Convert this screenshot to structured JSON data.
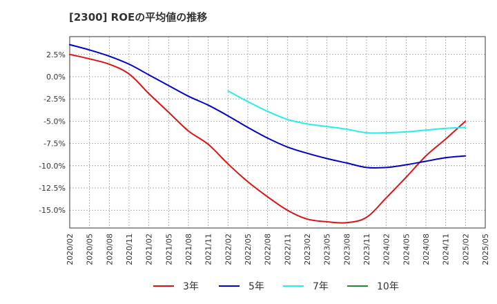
{
  "title": "[2300]  ROEの平均値の推移",
  "chart_data": {
    "type": "line",
    "title": "[2300]  ROEの平均値の推移",
    "xlabel": "",
    "ylabel": "",
    "x_ticks": [
      "2020/02",
      "2020/05",
      "2020/08",
      "2020/11",
      "2021/02",
      "2021/05",
      "2021/08",
      "2021/11",
      "2022/02",
      "2022/05",
      "2022/08",
      "2022/11",
      "2023/02",
      "2023/05",
      "2023/08",
      "2023/11",
      "2024/02",
      "2024/05",
      "2024/08",
      "2024/11",
      "2025/02",
      "2025/05"
    ],
    "y_ticks": [
      2.5,
      0.0,
      -2.5,
      -5.0,
      -7.5,
      -10.0,
      -12.5,
      -15.0
    ],
    "y_tick_labels": [
      "2.5%",
      "0.0%",
      "-2.5%",
      "-5.0%",
      "-7.5%",
      "-10.0%",
      "-12.5%",
      "-15.0%"
    ],
    "ylim": [
      -17.0,
      4.5
    ],
    "grid": true,
    "legend_position": "bottom",
    "series": [
      {
        "name": "3年",
        "color": "#dd1111",
        "x": [
          "2020/02",
          "2020/05",
          "2020/08",
          "2020/11",
          "2021/02",
          "2021/05",
          "2021/08",
          "2021/11",
          "2022/02",
          "2022/05",
          "2022/08",
          "2022/11",
          "2023/02",
          "2023/05",
          "2023/08",
          "2023/11",
          "2024/02",
          "2024/05",
          "2024/08",
          "2024/11",
          "2025/02"
        ],
        "values": [
          2.5,
          2.0,
          1.4,
          0.3,
          -1.9,
          -4.0,
          -6.1,
          -7.6,
          -9.8,
          -11.8,
          -13.5,
          -15.0,
          -16.0,
          -16.3,
          -16.4,
          -15.8,
          -13.6,
          -11.3,
          -8.9,
          -7.0,
          -5.0
        ]
      },
      {
        "name": "5年",
        "color": "#0000cc",
        "x": [
          "2020/02",
          "2020/05",
          "2020/08",
          "2020/11",
          "2021/02",
          "2021/05",
          "2021/08",
          "2021/11",
          "2022/02",
          "2022/05",
          "2022/08",
          "2022/11",
          "2023/02",
          "2023/05",
          "2023/08",
          "2023/11",
          "2024/02",
          "2024/05",
          "2024/08",
          "2024/11",
          "2025/02"
        ],
        "values": [
          3.6,
          3.0,
          2.3,
          1.4,
          0.2,
          -1.0,
          -2.2,
          -3.2,
          -4.4,
          -5.7,
          -6.9,
          -7.9,
          -8.6,
          -9.2,
          -9.7,
          -10.2,
          -10.2,
          -9.9,
          -9.5,
          -9.1,
          -8.9
        ]
      },
      {
        "name": "7年",
        "color": "#22eeee",
        "x": [
          "2022/02",
          "2022/05",
          "2022/08",
          "2022/11",
          "2023/02",
          "2023/05",
          "2023/08",
          "2023/11",
          "2024/02",
          "2024/05",
          "2024/08",
          "2024/11",
          "2025/02"
        ],
        "values": [
          -1.6,
          -2.8,
          -3.9,
          -4.8,
          -5.3,
          -5.6,
          -5.9,
          -6.3,
          -6.3,
          -6.2,
          -6.0,
          -5.8,
          -5.7
        ]
      },
      {
        "name": "10年",
        "color": "#228822",
        "x": [],
        "values": []
      }
    ]
  }
}
